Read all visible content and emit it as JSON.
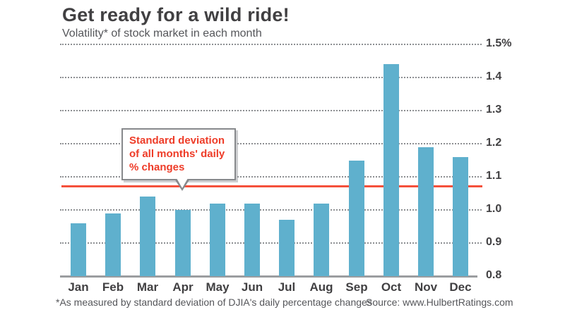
{
  "header": {
    "title": "Get ready for a wild ride!",
    "subtitle": "Volatility* of stock market in each month"
  },
  "annotation": {
    "lines": [
      "Standard deviation",
      "of all months' daily",
      "% changes"
    ]
  },
  "chart_data": {
    "type": "bar",
    "title": "Get ready for a wild ride!",
    "subtitle": "Volatility* of stock market in each month",
    "categories": [
      "Jan",
      "Feb",
      "Mar",
      "Apr",
      "May",
      "Jun",
      "Jul",
      "Aug",
      "Sep",
      "Oct",
      "Nov",
      "Dec"
    ],
    "values": [
      0.96,
      0.99,
      1.04,
      1.0,
      1.02,
      1.02,
      0.97,
      1.02,
      1.15,
      1.44,
      1.19,
      1.16
    ],
    "ylim": [
      0.8,
      1.5
    ],
    "yticks": [
      {
        "value": 1.5,
        "label": "1.5%"
      },
      {
        "value": 1.4,
        "label": "1.4"
      },
      {
        "value": 1.3,
        "label": "1.3"
      },
      {
        "value": 1.2,
        "label": "1.2"
      },
      {
        "value": 1.1,
        "label": "1.1"
      },
      {
        "value": 1.0,
        "label": "1.0"
      },
      {
        "value": 0.9,
        "label": "0.9"
      },
      {
        "value": 0.8,
        "label": "0.8"
      }
    ],
    "reference_line": {
      "value": 1.073,
      "label": "Standard deviation of all months' daily % changes",
      "color": "#f5503b"
    },
    "bar_color": "#5fb0cd",
    "grid": "horizontal dotted",
    "legend": "none",
    "xlabel": "",
    "ylabel": ""
  },
  "footer": {
    "footnote": "*As measured by standard deviation of DJIA's daily percentage changes",
    "source": "Source: www.HulbertRatings.com"
  },
  "colors": {
    "title_text": "#414042",
    "subtitle_text": "#55565a",
    "bar": "#5fb0cd",
    "reference_line": "#f5503b",
    "annotation_text": "#ee3c28",
    "grid": "#8d8f92",
    "axis_baseline": "#9b9da0"
  }
}
